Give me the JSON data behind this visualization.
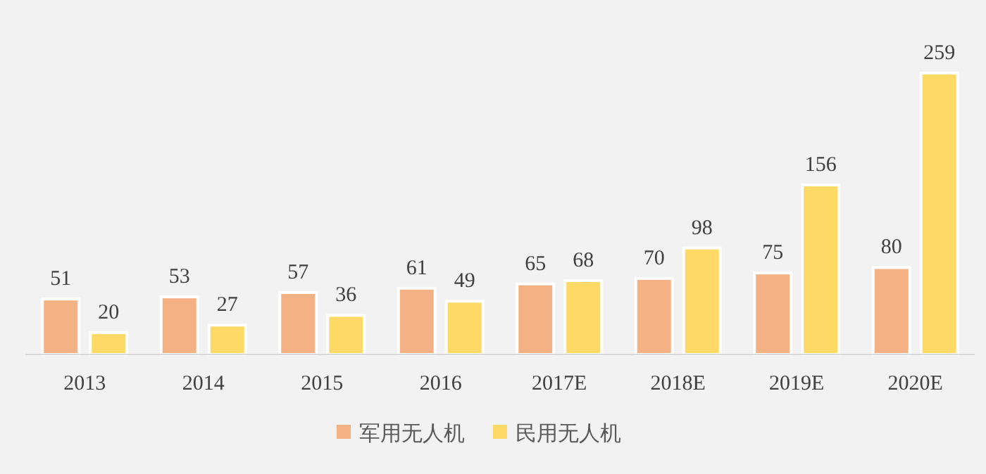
{
  "chart_data": {
    "type": "bar",
    "categories": [
      "2013",
      "2014",
      "2015",
      "2016",
      "2017E",
      "2018E",
      "2019E",
      "2020E"
    ],
    "series": [
      {
        "name": "军用无人机",
        "color": "#f4b183",
        "values": [
          51,
          53,
          57,
          61,
          65,
          70,
          75,
          80
        ]
      },
      {
        "name": "民用无人机",
        "color": "#ffd966",
        "values": [
          20,
          27,
          36,
          49,
          68,
          98,
          156,
          259
        ]
      }
    ],
    "data_labels": true,
    "legend": "bottom"
  }
}
